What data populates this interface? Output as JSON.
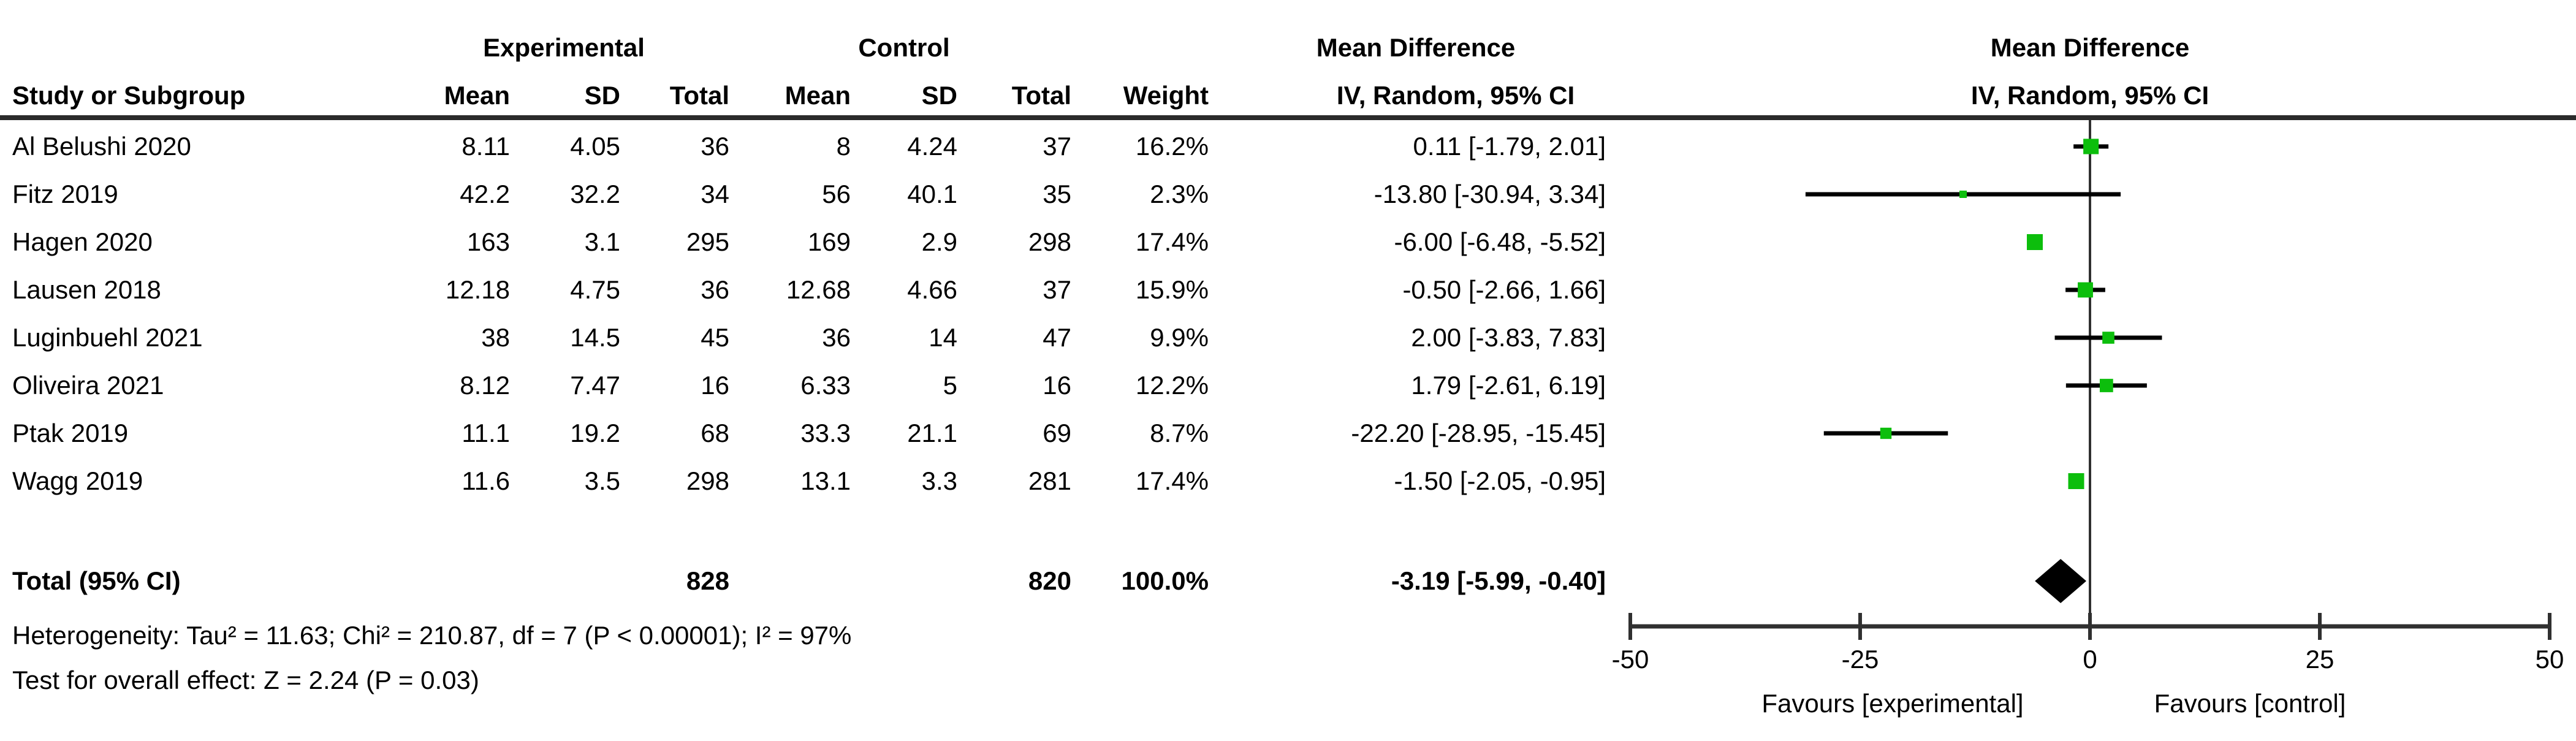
{
  "figure": {
    "header": {
      "study_col": "Study or Subgroup",
      "group_experimental": "Experimental",
      "group_control": "Control",
      "exp_mean": "Mean",
      "exp_sd": "SD",
      "exp_total": "Total",
      "ctrl_mean": "Mean",
      "ctrl_sd": "SD",
      "ctrl_total": "Total",
      "col_weight": "Weight",
      "md_title": "Mean Difference",
      "md_subtitle": "IV, Random, 95% CI",
      "plot_title": "Mean Difference",
      "plot_subtitle": "IV, Random, 95% CI"
    },
    "footer": {
      "heterogeneity": "Heterogeneity: Tau² = 11.63; Chi² = 210.87, df = 7 (P < 0.00001); I² = 97%",
      "overall_effect": "Test for overall effect: Z = 2.24 (P = 0.03)"
    },
    "colors": {
      "marker_green": "#0CBE0C",
      "diamond_black": "#000000",
      "line_dark": "#303030",
      "text": "#000000",
      "background": "#FFFFFF"
    }
  },
  "chart_data": {
    "type": "forest",
    "effect_label": "Mean Difference",
    "model": "IV, Random, 95% CI",
    "xlim": [
      -50,
      50
    ],
    "xticks": [
      -50,
      -25,
      0,
      25,
      50
    ],
    "xtick_labels": [
      "-50",
      "-25",
      "0",
      "25",
      "50"
    ],
    "favours_left": "Favours [experimental]",
    "favours_right": "Favours [control]",
    "studies": [
      {
        "label": "Al Belushi 2020",
        "exp_mean": "8.11",
        "exp_sd": "4.05",
        "exp_total": "36",
        "ctrl_mean": "8",
        "ctrl_sd": "4.24",
        "ctrl_total": "37",
        "weight": "16.2%",
        "ci_label": "0.11 [-1.79, 2.01]",
        "md": 0.11,
        "ci_low": -1.79,
        "ci_high": 2.01,
        "weight_value": 16.2
      },
      {
        "label": "Fitz 2019",
        "exp_mean": "42.2",
        "exp_sd": "32.2",
        "exp_total": "34",
        "ctrl_mean": "56",
        "ctrl_sd": "40.1",
        "ctrl_total": "35",
        "weight": "2.3%",
        "ci_label": "-13.80 [-30.94, 3.34]",
        "md": -13.8,
        "ci_low": -30.94,
        "ci_high": 3.34,
        "weight_value": 2.3
      },
      {
        "label": "Hagen 2020",
        "exp_mean": "163",
        "exp_sd": "3.1",
        "exp_total": "295",
        "ctrl_mean": "169",
        "ctrl_sd": "2.9",
        "ctrl_total": "298",
        "weight": "17.4%",
        "ci_label": "-6.00 [-6.48, -5.52]",
        "md": -6.0,
        "ci_low": -6.48,
        "ci_high": -5.52,
        "weight_value": 17.4
      },
      {
        "label": "Lausen 2018",
        "exp_mean": "12.18",
        "exp_sd": "4.75",
        "exp_total": "36",
        "ctrl_mean": "12.68",
        "ctrl_sd": "4.66",
        "ctrl_total": "37",
        "weight": "15.9%",
        "ci_label": "-0.50 [-2.66, 1.66]",
        "md": -0.5,
        "ci_low": -2.66,
        "ci_high": 1.66,
        "weight_value": 15.9
      },
      {
        "label": "Luginbuehl 2021",
        "exp_mean": "38",
        "exp_sd": "14.5",
        "exp_total": "45",
        "ctrl_mean": "36",
        "ctrl_sd": "14",
        "ctrl_total": "47",
        "weight": "9.9%",
        "ci_label": "2.00 [-3.83, 7.83]",
        "md": 2.0,
        "ci_low": -3.83,
        "ci_high": 7.83,
        "weight_value": 9.9
      },
      {
        "label": "Oliveira 2021",
        "exp_mean": "8.12",
        "exp_sd": "7.47",
        "exp_total": "16",
        "ctrl_mean": "6.33",
        "ctrl_sd": "5",
        "ctrl_total": "16",
        "weight": "12.2%",
        "ci_label": "1.79 [-2.61, 6.19]",
        "md": 1.79,
        "ci_low": -2.61,
        "ci_high": 6.19,
        "weight_value": 12.2
      },
      {
        "label": "Ptak 2019",
        "exp_mean": "11.1",
        "exp_sd": "19.2",
        "exp_total": "68",
        "ctrl_mean": "33.3",
        "ctrl_sd": "21.1",
        "ctrl_total": "69",
        "weight": "8.7%",
        "ci_label": "-22.20 [-28.95, -15.45]",
        "md": -22.2,
        "ci_low": -28.95,
        "ci_high": -15.45,
        "weight_value": 8.7
      },
      {
        "label": "Wagg 2019",
        "exp_mean": "11.6",
        "exp_sd": "3.5",
        "exp_total": "298",
        "ctrl_mean": "13.1",
        "ctrl_sd": "3.3",
        "ctrl_total": "281",
        "weight": "17.4%",
        "ci_label": "-1.50 [-2.05, -0.95]",
        "md": -1.5,
        "ci_low": -2.05,
        "ci_high": -0.95,
        "weight_value": 17.4
      }
    ],
    "total": {
      "label": "Total (95% CI)",
      "exp_total": "828",
      "ctrl_total": "820",
      "weight": "100.0%",
      "ci_label": "-3.19 [-5.99, -0.40]",
      "md": -3.19,
      "ci_low": -5.99,
      "ci_high": -0.4,
      "weight_value": 100.0
    }
  }
}
